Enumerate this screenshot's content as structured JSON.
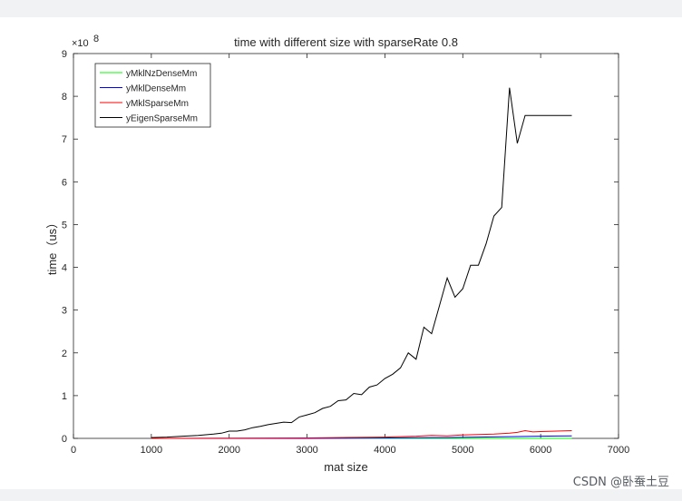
{
  "chart_data": {
    "type": "line",
    "title": "time with different size with sparseRate 0.8",
    "xlabel": "mat size",
    "ylabel": "time（us）",
    "y_exponent_label": "×10",
    "y_exponent_power": "8",
    "xlim": [
      0,
      7000
    ],
    "ylim": [
      0,
      9
    ],
    "x_ticks": [
      0,
      1000,
      2000,
      3000,
      4000,
      5000,
      6000,
      7000
    ],
    "y_ticks": [
      0,
      1,
      2,
      3,
      4,
      5,
      6,
      7,
      8,
      9
    ],
    "grid": false,
    "legend_position": "top-left",
    "series": [
      {
        "name": "yMklNzDenseMm",
        "color": "#00ff00",
        "x": [
          1000,
          2000,
          3000,
          4000,
          4400,
          4800,
          5200,
          5600,
          6000,
          6400
        ],
        "y": [
          0.0,
          0.0,
          0.0,
          0.0,
          0.0,
          0.0,
          0.0,
          0.0,
          0.0,
          0.0
        ]
      },
      {
        "name": "yMklDenseMm",
        "color": "#0000ff",
        "x": [
          1000,
          2000,
          3000,
          4000,
          4400,
          4800,
          5200,
          5600,
          5800,
          6000,
          6200,
          6400
        ],
        "y": [
          0.0,
          0.0,
          0.0,
          0.01,
          0.015,
          0.02,
          0.03,
          0.04,
          0.045,
          0.05,
          0.055,
          0.06
        ]
      },
      {
        "name": "yMklSparseMm",
        "color": "#ff0000",
        "x": [
          1000,
          2000,
          3000,
          4000,
          4200,
          4400,
          4600,
          4800,
          5000,
          5200,
          5400,
          5600,
          5700,
          5800,
          5900,
          6000,
          6200,
          6400
        ],
        "y": [
          0.0,
          0.005,
          0.01,
          0.03,
          0.04,
          0.05,
          0.07,
          0.06,
          0.08,
          0.09,
          0.1,
          0.12,
          0.14,
          0.18,
          0.15,
          0.16,
          0.17,
          0.18
        ]
      },
      {
        "name": "yEigenSparseMm",
        "color": "#000000",
        "x": [
          1000,
          1200,
          1400,
          1600,
          1800,
          1900,
          2000,
          2100,
          2200,
          2300,
          2400,
          2500,
          2600,
          2700,
          2800,
          2900,
          3000,
          3100,
          3200,
          3300,
          3400,
          3500,
          3600,
          3700,
          3800,
          3900,
          4000,
          4100,
          4200,
          4300,
          4400,
          4500,
          4600,
          4700,
          4800,
          4900,
          5000,
          5100,
          5200,
          5300,
          5400,
          5500,
          5600,
          5700,
          5800,
          5900,
          6000,
          6100,
          6200,
          6300,
          6400
        ],
        "y": [
          0.02,
          0.03,
          0.05,
          0.07,
          0.1,
          0.12,
          0.17,
          0.17,
          0.2,
          0.25,
          0.28,
          0.32,
          0.35,
          0.38,
          0.37,
          0.5,
          0.55,
          0.6,
          0.7,
          0.75,
          0.88,
          0.9,
          1.05,
          1.02,
          1.2,
          1.25,
          1.4,
          1.5,
          1.65,
          2.0,
          1.85,
          2.6,
          2.45,
          3.1,
          3.75,
          3.3,
          3.5,
          4.05,
          4.05,
          4.55,
          5.2,
          5.4,
          8.2,
          6.9,
          7.55,
          7.55,
          7.55,
          7.55,
          7.55,
          7.55,
          7.55
        ]
      }
    ]
  },
  "watermark": "CSDN @卧蚕土豆"
}
